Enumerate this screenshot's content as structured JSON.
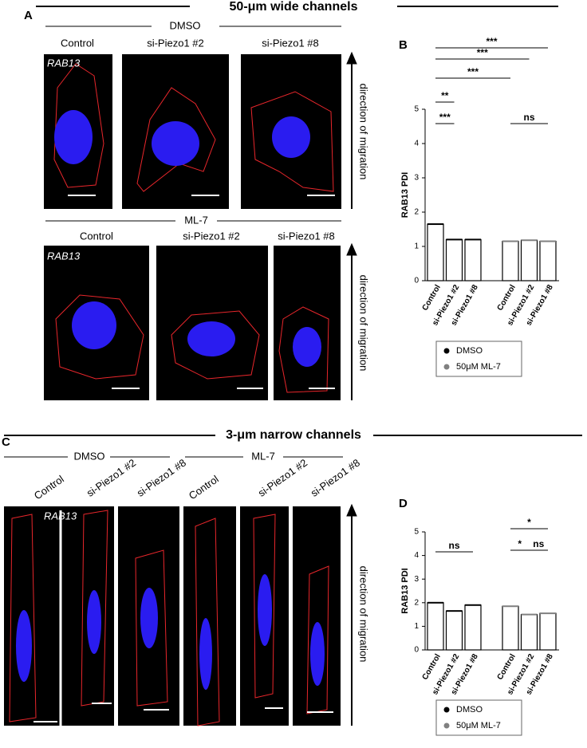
{
  "figure": {
    "top": {
      "label": "A",
      "header": "50-μm wide channels",
      "group1": "DMSO",
      "group2": "ML-7",
      "conditions": [
        "Control",
        "si-Piezo1 #2",
        "si-Piezo1 #8"
      ],
      "stain": "RAB13",
      "arrow": "direction of migration",
      "chart_label": "B"
    },
    "bottom": {
      "label": "C",
      "header": "3-μm narrow channels",
      "group1": "DMSO",
      "group2": "ML-7",
      "conditions": [
        "Control",
        "si-Piezo1 #2",
        "si-Piezo1 #8"
      ],
      "stain": "RAB13",
      "arrow": "direction of migration",
      "chart_label": "D"
    }
  },
  "chart_data": [
    {
      "type": "bar",
      "ylabel": "RAB13 PDI",
      "ylim": [
        0,
        5
      ],
      "yticks": [
        0,
        1,
        2,
        3,
        4,
        5
      ],
      "categories": [
        "Control",
        "si-Piezo1 #2",
        "si-Piezo1 #8"
      ],
      "series": [
        {
          "name": "DMSO",
          "color": "#000000",
          "values": [
            1.65,
            1.2,
            1.2
          ]
        },
        {
          "name": "50μM ML-7",
          "color": "#808080",
          "values": [
            1.15,
            1.18,
            1.15
          ]
        }
      ],
      "annotations": [
        "***",
        "***",
        "***",
        "**",
        "***",
        "ns"
      ]
    },
    {
      "type": "bar",
      "ylabel": "RAB13 PDI",
      "ylim": [
        0,
        5
      ],
      "yticks": [
        0,
        1,
        2,
        3,
        4,
        5
      ],
      "categories": [
        "Control",
        "si-Piezo1 #2",
        "si-Piezo1 #8"
      ],
      "series": [
        {
          "name": "DMSO",
          "color": "#000000",
          "values": [
            2.0,
            1.65,
            1.9
          ]
        },
        {
          "name": "50μM ML-7",
          "color": "#808080",
          "values": [
            1.85,
            1.5,
            1.55
          ]
        }
      ],
      "annotations": [
        "ns",
        "*",
        "*",
        "ns"
      ]
    }
  ]
}
